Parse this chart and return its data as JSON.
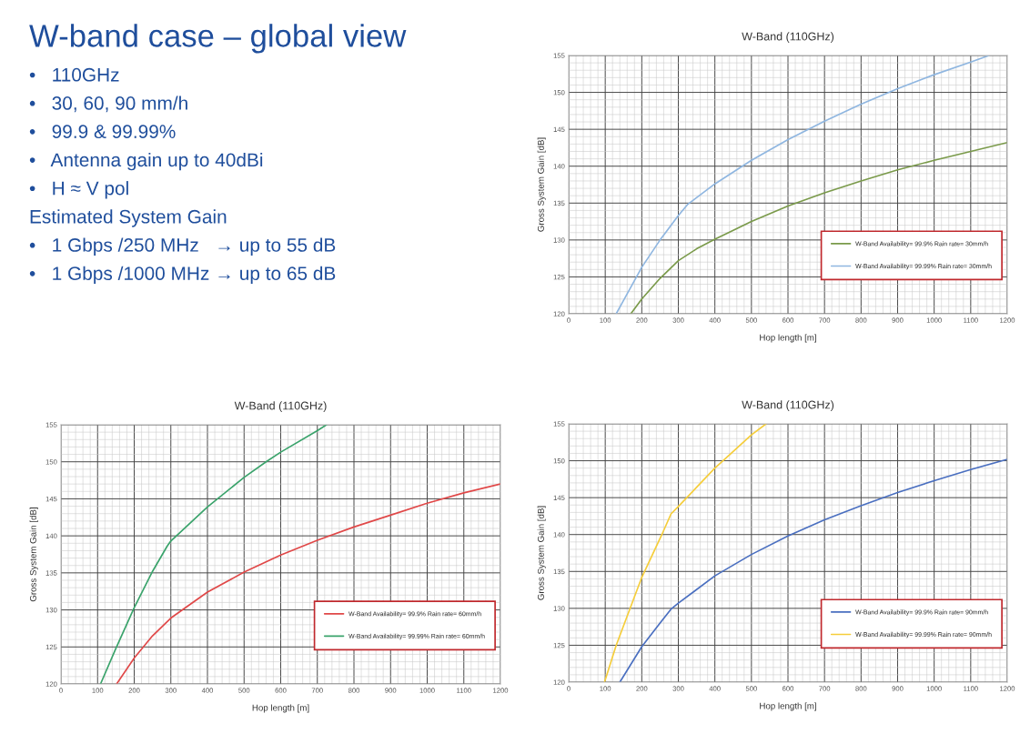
{
  "chart_data": [
    {
      "type": "other",
      "title": "W-band case – global view",
      "annotations": [
        "•   110GHz",
        "•   30, 60, 90 mm/h",
        "•   99.9 & 99.99%",
        "•   Antenna gain up to 40dBi",
        "•   H ≈ V pol",
        "Estimated System Gain",
        "•   1 Gbps /250 MHz   → up to 55 dB",
        "•   1 Gbps /1000 MHz → up to 65 dB"
      ]
    },
    {
      "type": "line",
      "title": "W-Band (110GHz)",
      "xlabel": "Hop length [m]",
      "ylabel": "Gross System Gain [dB]",
      "xlim": [
        0,
        1200
      ],
      "ylim": [
        120,
        155
      ],
      "xticks": [
        0,
        100,
        200,
        300,
        400,
        500,
        600,
        700,
        800,
        900,
        1000,
        1100,
        1200
      ],
      "yticks": [
        120,
        125,
        130,
        135,
        140,
        145,
        150,
        155
      ],
      "grid": true,
      "legend": "bottom right",
      "series": [
        {
          "name": "W-Band Availability= 99.9% Rain rate= 30mm/h",
          "color": "#7a9a4a",
          "x": [
            170,
            200,
            250,
            300,
            350,
            400,
            500,
            600,
            700,
            800,
            900,
            1000,
            1100,
            1200
          ],
          "values": [
            120,
            122,
            124.8,
            127.2,
            128.8,
            130.1,
            132.5,
            134.6,
            136.4,
            138,
            139.5,
            140.8,
            142,
            143.2
          ]
        },
        {
          "name": "W-Band Availability= 99.99% Rain rate= 30mm/h",
          "color": "#8fb6e0",
          "x": [
            130,
            150,
            200,
            250,
            300,
            325,
            400,
            500,
            600,
            700,
            800,
            900,
            1000,
            1100,
            1150
          ],
          "values": [
            120,
            121.8,
            126.3,
            130,
            133.3,
            134.8,
            137.6,
            140.8,
            143.6,
            146.1,
            148.4,
            150.5,
            152.4,
            154.1,
            155
          ]
        }
      ]
    },
    {
      "type": "line",
      "title": "W-Band (110GHz)",
      "xlabel": "Hop length [m]",
      "ylabel": "Gross System Gain [dB]",
      "xlim": [
        0,
        1200
      ],
      "ylim": [
        120,
        155
      ],
      "xticks": [
        0,
        100,
        200,
        300,
        400,
        500,
        600,
        700,
        800,
        900,
        1000,
        1100,
        1200
      ],
      "yticks": [
        120,
        125,
        130,
        135,
        140,
        145,
        150,
        155
      ],
      "grid": true,
      "legend": "bottom right",
      "series": [
        {
          "name": "W-Band Availability= 99.9% Rain rate= 60mm/h",
          "color": "#e04848",
          "x": [
            152,
            200,
            250,
            300,
            400,
            500,
            600,
            700,
            800,
            900,
            1000,
            1100,
            1200
          ],
          "values": [
            120,
            123.5,
            126.5,
            128.9,
            132.4,
            135.1,
            137.4,
            139.4,
            141.2,
            142.8,
            144.4,
            145.8,
            147
          ]
        },
        {
          "name": "W-Band Availability= 99.99% Rain rate= 60mm/h",
          "color": "#3aa36b",
          "x": [
            108,
            150,
            200,
            250,
            290,
            300,
            400,
            500,
            560,
            600,
            700,
            725
          ],
          "values": [
            120,
            124.8,
            130.3,
            135.2,
            138.6,
            139.3,
            143.9,
            147.9,
            150,
            151.3,
            154.2,
            155
          ]
        }
      ]
    },
    {
      "type": "line",
      "title": "W-Band (110GHz)",
      "xlabel": "Hop length [m]",
      "ylabel": "Gross System Gain [dB]",
      "xlim": [
        0,
        1200
      ],
      "ylim": [
        120,
        155
      ],
      "xticks": [
        0,
        100,
        200,
        300,
        400,
        500,
        600,
        700,
        800,
        900,
        1000,
        1100,
        1200
      ],
      "yticks": [
        120,
        125,
        130,
        135,
        140,
        145,
        150,
        155
      ],
      "grid": true,
      "legend": "bottom right",
      "series": [
        {
          "name": "W-Band Availability= 99.9% Rain rate= 90mm/h",
          "color": "#4a6fc0",
          "x": [
            140,
            200,
            250,
            280,
            300,
            400,
            500,
            600,
            700,
            800,
            900,
            1000,
            1100,
            1200
          ],
          "values": [
            120,
            124.8,
            128,
            129.9,
            130.7,
            134.4,
            137.3,
            139.8,
            142,
            143.9,
            145.7,
            147.3,
            148.8,
            150.2
          ]
        },
        {
          "name": "W-Band Availability= 99.99% Rain rate= 90mm/h",
          "color": "#f5cd3a",
          "x": [
            98,
            130,
            200,
            255,
            280,
            300,
            400,
            500,
            540
          ],
          "values": [
            120,
            125,
            134.2,
            140,
            142.8,
            143.8,
            149,
            153.5,
            155
          ]
        }
      ]
    }
  ]
}
